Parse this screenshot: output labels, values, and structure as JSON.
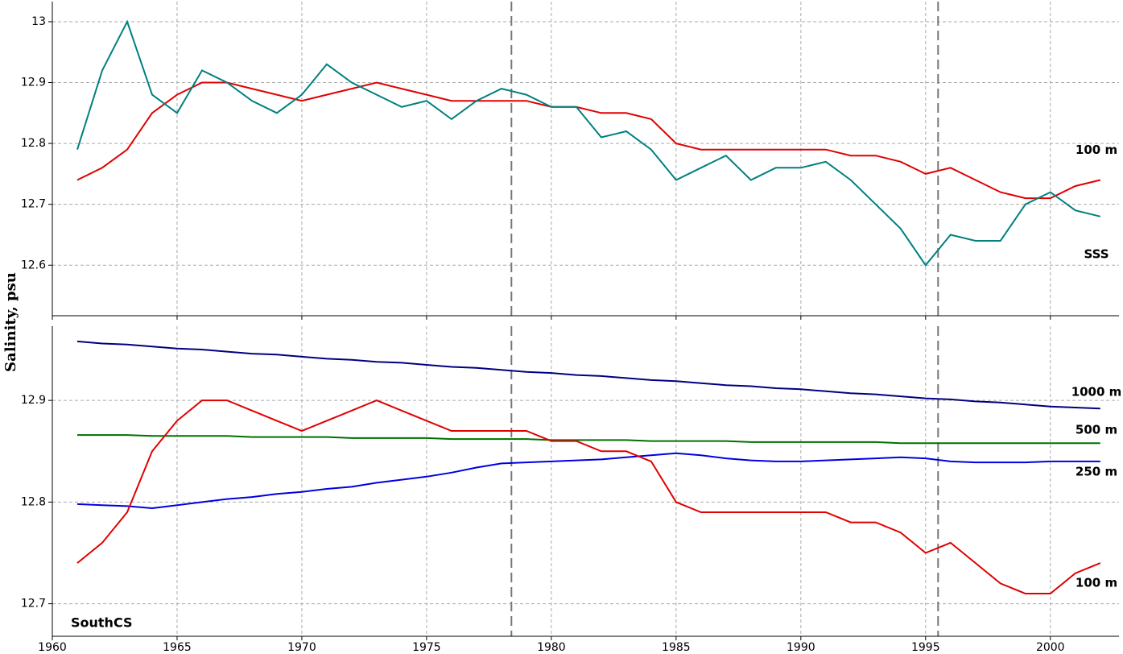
{
  "chart_data": [
    {
      "type": "line",
      "ylabel": "Salinity, psu",
      "x": [
        1961,
        1962,
        1963,
        1964,
        1965,
        1966,
        1967,
        1968,
        1969,
        1970,
        1971,
        1972,
        1973,
        1974,
        1975,
        1976,
        1977,
        1978,
        1979,
        1980,
        1981,
        1982,
        1983,
        1984,
        1985,
        1986,
        1987,
        1988,
        1989,
        1990,
        1991,
        1992,
        1993,
        1994,
        1995,
        1996,
        1997,
        1998,
        1999,
        2000,
        2001,
        2002
      ],
      "xlim": [
        1960,
        2002.75
      ],
      "ylim": [
        12.517,
        13.033
      ],
      "xticks": [
        1960,
        1965,
        1970,
        1975,
        1980,
        1985,
        1990,
        1995,
        2000
      ],
      "yticks": [
        12.6,
        12.7,
        12.8,
        12.9,
        13
      ],
      "markers": [
        1978.4,
        1995.5
      ],
      "grid": true,
      "series": [
        {
          "name": "100 m",
          "color": "#e00000",
          "values": [
            12.74,
            12.76,
            12.79,
            12.85,
            12.88,
            12.9,
            12.9,
            12.89,
            12.88,
            12.87,
            12.88,
            12.89,
            12.9,
            12.89,
            12.88,
            12.87,
            12.87,
            12.87,
            12.87,
            12.86,
            12.86,
            12.85,
            12.85,
            12.84,
            12.8,
            12.79,
            12.79,
            12.79,
            12.79,
            12.79,
            12.79,
            12.78,
            12.78,
            12.77,
            12.75,
            12.76,
            12.74,
            12.72,
            12.71,
            12.71,
            12.73,
            12.74
          ]
        },
        {
          "name": "SSS",
          "color": "#008080",
          "values": [
            12.79,
            12.92,
            13.0,
            12.88,
            12.85,
            12.92,
            12.9,
            12.87,
            12.85,
            12.88,
            12.93,
            12.9,
            12.88,
            12.86,
            12.87,
            12.84,
            12.87,
            12.89,
            12.88,
            12.86,
            12.86,
            12.81,
            12.82,
            12.79,
            12.74,
            12.76,
            12.78,
            12.74,
            12.76,
            12.76,
            12.77,
            12.74,
            12.7,
            12.66,
            12.6,
            12.65,
            12.64,
            12.64,
            12.7,
            12.72,
            12.69,
            12.68
          ]
        }
      ]
    },
    {
      "type": "line",
      "annotation": "SouthCS",
      "x": [
        1961,
        1962,
        1963,
        1964,
        1965,
        1966,
        1967,
        1968,
        1969,
        1970,
        1971,
        1972,
        1973,
        1974,
        1975,
        1976,
        1977,
        1978,
        1979,
        1980,
        1981,
        1982,
        1983,
        1984,
        1985,
        1986,
        1987,
        1988,
        1989,
        1990,
        1991,
        1992,
        1993,
        1994,
        1995,
        1996,
        1997,
        1998,
        1999,
        2000,
        2001,
        2002
      ],
      "xlim": [
        1960,
        2002.75
      ],
      "ylim": [
        12.668,
        12.973
      ],
      "xticks": [
        1960,
        1965,
        1970,
        1975,
        1980,
        1985,
        1990,
        1995,
        2000
      ],
      "yticks": [
        12.7,
        12.8,
        12.9
      ],
      "markers": [
        1978.4,
        1995.5
      ],
      "grid": true,
      "series": [
        {
          "name": "1000 m",
          "color": "#000080",
          "values": [
            12.958,
            12.956,
            12.955,
            12.953,
            12.951,
            12.95,
            12.948,
            12.946,
            12.945,
            12.943,
            12.941,
            12.94,
            12.938,
            12.937,
            12.935,
            12.933,
            12.932,
            12.93,
            12.928,
            12.927,
            12.925,
            12.924,
            12.922,
            12.92,
            12.919,
            12.917,
            12.915,
            12.914,
            12.912,
            12.911,
            12.909,
            12.907,
            12.906,
            12.904,
            12.902,
            12.901,
            12.899,
            12.898,
            12.896,
            12.894,
            12.893,
            12.892
          ]
        },
        {
          "name": "500 m",
          "color": "#007000",
          "values": [
            12.866,
            12.866,
            12.866,
            12.865,
            12.865,
            12.865,
            12.865,
            12.864,
            12.864,
            12.864,
            12.864,
            12.863,
            12.863,
            12.863,
            12.863,
            12.862,
            12.862,
            12.862,
            12.862,
            12.861,
            12.861,
            12.861,
            12.861,
            12.86,
            12.86,
            12.86,
            12.86,
            12.859,
            12.859,
            12.859,
            12.859,
            12.859,
            12.859,
            12.858,
            12.858,
            12.858,
            12.858,
            12.858,
            12.858,
            12.858,
            12.858,
            12.858
          ]
        },
        {
          "name": "250 m",
          "color": "#0000e0",
          "values": [
            12.798,
            12.797,
            12.796,
            12.794,
            12.797,
            12.8,
            12.803,
            12.805,
            12.808,
            12.81,
            12.813,
            12.815,
            12.819,
            12.822,
            12.825,
            12.829,
            12.834,
            12.838,
            12.839,
            12.84,
            12.841,
            12.842,
            12.844,
            12.846,
            12.848,
            12.846,
            12.843,
            12.841,
            12.84,
            12.84,
            12.841,
            12.842,
            12.843,
            12.844,
            12.843,
            12.84,
            12.839,
            12.839,
            12.839,
            12.84,
            12.84,
            12.84
          ]
        },
        {
          "name": "100 m",
          "color": "#e00000",
          "values": [
            12.74,
            12.76,
            12.79,
            12.85,
            12.88,
            12.9,
            12.9,
            12.89,
            12.88,
            12.87,
            12.88,
            12.89,
            12.9,
            12.89,
            12.88,
            12.87,
            12.87,
            12.87,
            12.87,
            12.86,
            12.86,
            12.85,
            12.85,
            12.84,
            12.8,
            12.79,
            12.79,
            12.79,
            12.79,
            12.79,
            12.79,
            12.78,
            12.78,
            12.77,
            12.75,
            12.76,
            12.74,
            12.72,
            12.71,
            12.71,
            12.73,
            12.74
          ]
        }
      ]
    }
  ]
}
